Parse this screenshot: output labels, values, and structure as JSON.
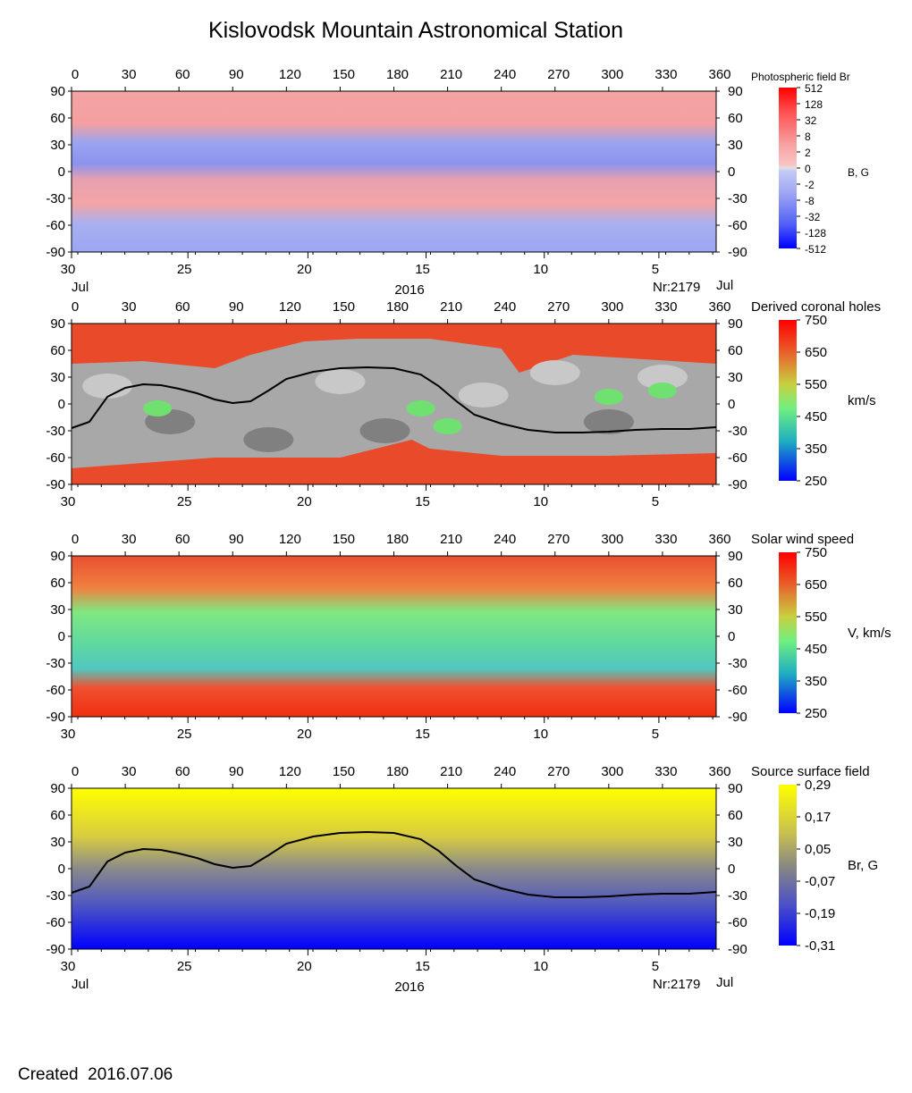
{
  "title": "Kislovodsk Mountain Astronomical Station",
  "created": "Created  2016.07.06",
  "colors": {
    "photo_pos_strong": "#ff0000",
    "photo_pos_weak": "#f4a6a6",
    "photo_neg_weak": "#aab2f0",
    "photo_neg_strong": "#0000ff",
    "hole_gray_dark": "#808080",
    "hole_gray_light": "#c0c0c0",
    "speed_low": "#0000ff",
    "speed_high": "#ff0000",
    "ss_low": "#0000ff",
    "ss_high": "#ffff00",
    "neutral_line": "#000000"
  },
  "chart_data": [
    {
      "type": "heatmap",
      "colorbar_title": "Photospheric field Br",
      "colorbar_unit": "B, G",
      "colorbar_ticks": [
        "512",
        "128",
        "32",
        "8",
        "2",
        "0",
        "-2",
        "-8",
        "-32",
        "-128",
        "-512"
      ],
      "top_ticks": [
        "0",
        "30",
        "60",
        "90",
        "120",
        "150",
        "180",
        "210",
        "240",
        "270",
        "300",
        "330",
        "360"
      ],
      "y_ticks": [
        "90",
        "60",
        "30",
        "0",
        "-30",
        "-60",
        "-90"
      ],
      "bottom_ticks": [
        {
          "lon": 0,
          "label": "30"
        },
        {
          "lon": 65,
          "label": "25"
        },
        {
          "lon": 132,
          "label": "20"
        },
        {
          "lon": 198,
          "label": "15"
        },
        {
          "lon": 264,
          "label": "10"
        },
        {
          "lon": 328,
          "label": "5"
        }
      ],
      "footer": {
        "left": "Jul",
        "center": "2016",
        "right": "Nr:2179",
        "far_right": "Jul"
      },
      "xlim": [
        0,
        360
      ],
      "ylim": [
        -90,
        90
      ]
    },
    {
      "type": "heatmap",
      "colorbar_title": "Derived coronal holes",
      "colorbar_unit": "km/s",
      "colorbar_ticks": [
        "750",
        "650",
        "550",
        "450",
        "350",
        "250"
      ],
      "top_ticks": [
        "0",
        "30",
        "60",
        "90",
        "120",
        "150",
        "180",
        "210",
        "240",
        "270",
        "300",
        "330",
        "360"
      ],
      "y_ticks": [
        "90",
        "60",
        "30",
        "0",
        "-30",
        "-60",
        "-90"
      ],
      "bottom_ticks": [
        {
          "lon": 0,
          "label": "30"
        },
        {
          "lon": 65,
          "label": "25"
        },
        {
          "lon": 132,
          "label": "20"
        },
        {
          "lon": 198,
          "label": "15"
        },
        {
          "lon": 264,
          "label": "10"
        },
        {
          "lon": 328,
          "label": "5"
        }
      ],
      "xlim": [
        0,
        360
      ],
      "ylim": [
        -90,
        90
      ],
      "neutral_line": true
    },
    {
      "type": "heatmap",
      "colorbar_title": "Solar wind speed",
      "colorbar_unit": "V, km/s",
      "colorbar_ticks": [
        "750",
        "650",
        "550",
        "450",
        "350",
        "250"
      ],
      "top_ticks": [
        "0",
        "30",
        "60",
        "90",
        "120",
        "150",
        "180",
        "210",
        "240",
        "270",
        "300",
        "330",
        "360"
      ],
      "y_ticks": [
        "90",
        "60",
        "30",
        "0",
        "-30",
        "-60",
        "-90"
      ],
      "bottom_ticks": [
        {
          "lon": 0,
          "label": "30"
        },
        {
          "lon": 65,
          "label": "25"
        },
        {
          "lon": 132,
          "label": "20"
        },
        {
          "lon": 198,
          "label": "15"
        },
        {
          "lon": 264,
          "label": "10"
        },
        {
          "lon": 328,
          "label": "5"
        }
      ],
      "xlim": [
        0,
        360
      ],
      "ylim": [
        -90,
        90
      ]
    },
    {
      "type": "heatmap",
      "colorbar_title": "Source surface field",
      "colorbar_unit": "Br, G",
      "colorbar_ticks": [
        "0,29",
        "0,17",
        "0,05",
        "-0,07",
        "-0,19",
        "-0,31"
      ],
      "top_ticks": [
        "0",
        "30",
        "60",
        "90",
        "120",
        "150",
        "180",
        "210",
        "240",
        "270",
        "300",
        "330",
        "360"
      ],
      "y_ticks": [
        "90",
        "60",
        "30",
        "0",
        "-30",
        "-60",
        "-90"
      ],
      "bottom_ticks": [
        {
          "lon": 0,
          "label": "30"
        },
        {
          "lon": 65,
          "label": "25"
        },
        {
          "lon": 132,
          "label": "20"
        },
        {
          "lon": 198,
          "label": "15"
        },
        {
          "lon": 264,
          "label": "10"
        },
        {
          "lon": 328,
          "label": "5"
        }
      ],
      "footer": {
        "left": "Jul",
        "center": "2016",
        "right": "Nr:2179",
        "far_right": "Jul"
      },
      "xlim": [
        0,
        360
      ],
      "ylim": [
        -90,
        90
      ],
      "neutral_line": true
    }
  ],
  "neutral_line_points": [
    [
      0,
      -27
    ],
    [
      10,
      -20
    ],
    [
      20,
      8
    ],
    [
      30,
      18
    ],
    [
      40,
      22
    ],
    [
      50,
      21
    ],
    [
      60,
      17
    ],
    [
      70,
      12
    ],
    [
      80,
      5
    ],
    [
      90,
      1
    ],
    [
      100,
      3
    ],
    [
      110,
      15
    ],
    [
      120,
      28
    ],
    [
      135,
      36
    ],
    [
      150,
      40
    ],
    [
      165,
      41
    ],
    [
      180,
      40
    ],
    [
      195,
      33
    ],
    [
      205,
      20
    ],
    [
      215,
      3
    ],
    [
      225,
      -12
    ],
    [
      240,
      -22
    ],
    [
      255,
      -29
    ],
    [
      270,
      -32
    ],
    [
      285,
      -32
    ],
    [
      300,
      -31
    ],
    [
      315,
      -29
    ],
    [
      330,
      -28
    ],
    [
      345,
      -28
    ],
    [
      360,
      -26
    ]
  ]
}
